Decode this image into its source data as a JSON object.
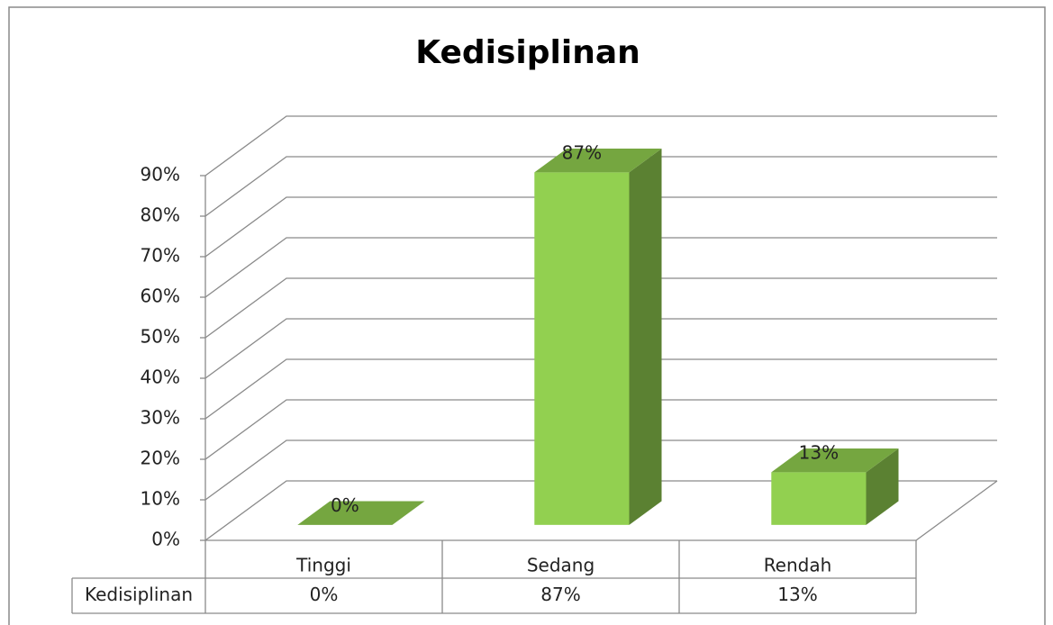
{
  "chart_data": {
    "type": "bar",
    "title": "Kedisiplinan",
    "categories": [
      "Tinggi",
      "Sedang",
      "Rendah"
    ],
    "series": [
      {
        "name": "Kedisiplinan",
        "color": "#92d050",
        "values": [
          0,
          87,
          13
        ],
        "value_labels": [
          "0%",
          "87%",
          "13%"
        ]
      }
    ],
    "ylim": [
      0,
      90
    ],
    "yticks": [
      {
        "value": 0,
        "label": "0%"
      },
      {
        "value": 10,
        "label": "10%"
      },
      {
        "value": 20,
        "label": "20%"
      },
      {
        "value": 30,
        "label": "30%"
      },
      {
        "value": 40,
        "label": "40%"
      },
      {
        "value": 50,
        "label": "50%"
      },
      {
        "value": 60,
        "label": "60%"
      },
      {
        "value": 70,
        "label": "70%"
      },
      {
        "value": 80,
        "label": "80%"
      },
      {
        "value": 90,
        "label": "90%"
      }
    ],
    "grid": true
  }
}
